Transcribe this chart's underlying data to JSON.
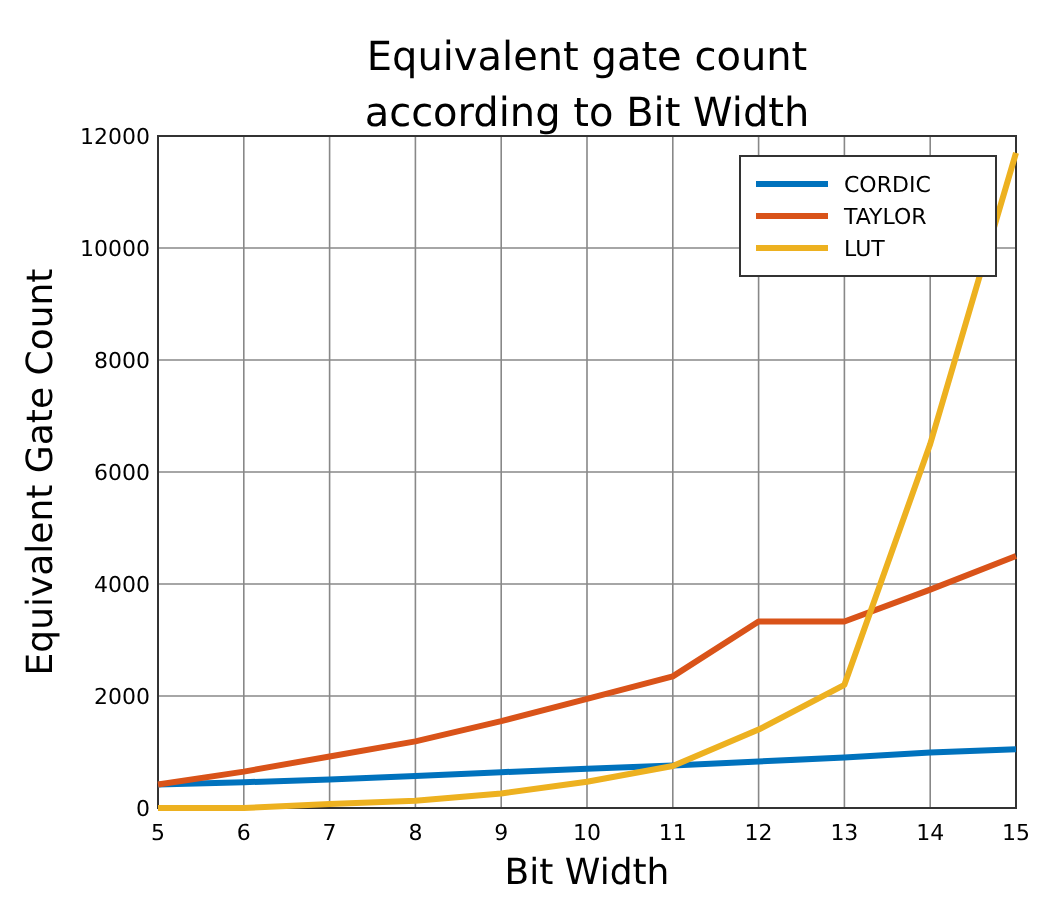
{
  "chart_data": {
    "type": "line",
    "title": "Equivalent gate count\naccording to Bit Width",
    "xlabel": "Bit Width",
    "ylabel": "Equivalent Gate Count",
    "x": [
      5,
      6,
      7,
      8,
      9,
      10,
      11,
      12,
      13,
      14,
      15
    ],
    "series": [
      {
        "name": "CORDIC",
        "color": "#0072bd",
        "values": [
          420,
          460,
          510,
          570,
          640,
          700,
          760,
          830,
          900,
          990,
          1050
        ]
      },
      {
        "name": "TAYLOR",
        "color": "#d95319",
        "values": [
          420,
          650,
          920,
          1190,
          1550,
          1950,
          2350,
          3330,
          3330,
          3900,
          4500
        ]
      },
      {
        "name": "LUT",
        "color": "#edb120",
        "values": [
          0,
          0,
          70,
          130,
          260,
          470,
          750,
          1400,
          2200,
          6500,
          11700
        ]
      }
    ],
    "xlim": [
      5,
      15
    ],
    "xticks": [
      5,
      6,
      7,
      8,
      9,
      10,
      11,
      12,
      13,
      14,
      15
    ],
    "ylim": [
      0,
      12000
    ],
    "yticks": [
      0,
      2000,
      4000,
      6000,
      8000,
      10000,
      12000
    ],
    "grid": true,
    "legend": "top right",
    "marker": "none",
    "line_style": "solid"
  }
}
